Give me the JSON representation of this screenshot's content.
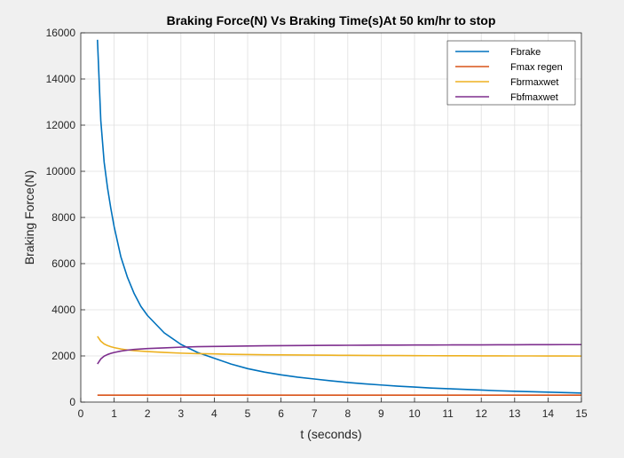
{
  "chart_data": {
    "type": "line",
    "title": "Braking Force(N) Vs Braking Time(s)At 50 km/hr to stop",
    "xlabel": "t (seconds)",
    "ylabel": "Braking Force(N)",
    "xlim": [
      0,
      15
    ],
    "ylim": [
      0,
      16000
    ],
    "xticks": [
      0,
      1,
      2,
      3,
      4,
      5,
      6,
      7,
      8,
      9,
      10,
      11,
      12,
      13,
      14,
      15
    ],
    "yticks": [
      0,
      2000,
      4000,
      6000,
      8000,
      10000,
      12000,
      14000,
      16000
    ],
    "grid": true,
    "legend_position": "top-right",
    "x": [
      0.5,
      0.6,
      0.7,
      0.8,
      0.9,
      1.0,
      1.2,
      1.4,
      1.6,
      1.8,
      2.0,
      2.5,
      3.0,
      3.5,
      4.0,
      4.5,
      5.0,
      5.5,
      6.0,
      6.5,
      7.0,
      7.5,
      8.0,
      8.5,
      9.0,
      9.5,
      10.0,
      10.5,
      11.0,
      11.5,
      12.0,
      12.5,
      13.0,
      13.5,
      14.0,
      14.5,
      15.0
    ],
    "series": [
      {
        "name": "Fbrake",
        "color": "#0072bd",
        "values": [
          15700,
          12200,
          10400,
          9300,
          8400,
          7600,
          6300,
          5400,
          4700,
          4150,
          3750,
          3000,
          2500,
          2150,
          1900,
          1650,
          1450,
          1300,
          1180,
          1080,
          1000,
          920,
          850,
          790,
          740,
          690,
          650,
          610,
          580,
          550,
          520,
          490,
          470,
          450,
          430,
          410,
          390
        ]
      },
      {
        "name": "Fmax regen",
        "color": "#d95319",
        "values": [
          300,
          300,
          300,
          300,
          300,
          300,
          300,
          300,
          300,
          300,
          300,
          300,
          300,
          300,
          300,
          300,
          300,
          300,
          300,
          300,
          300,
          300,
          300,
          300,
          300,
          300,
          300,
          300,
          300,
          300,
          300,
          300,
          300,
          300,
          300,
          300,
          300
        ]
      },
      {
        "name": "Fbrmaxwet",
        "color": "#edb120",
        "values": [
          2850,
          2640,
          2520,
          2450,
          2400,
          2360,
          2300,
          2260,
          2230,
          2210,
          2190,
          2150,
          2120,
          2100,
          2090,
          2070,
          2060,
          2050,
          2045,
          2040,
          2035,
          2030,
          2025,
          2020,
          2018,
          2015,
          2012,
          2010,
          2008,
          2006,
          2004,
          2002,
          2000,
          2000,
          1998,
          1996,
          1995
        ]
      },
      {
        "name": "Fbfmaxwet",
        "color": "#7e2f8e",
        "values": [
          1650,
          1870,
          1990,
          2060,
          2110,
          2150,
          2210,
          2250,
          2280,
          2300,
          2320,
          2350,
          2380,
          2400,
          2410,
          2420,
          2430,
          2440,
          2445,
          2450,
          2455,
          2460,
          2462,
          2465,
          2468,
          2470,
          2472,
          2474,
          2476,
          2478,
          2480,
          2482,
          2484,
          2486,
          2488,
          2490,
          2490
        ]
      }
    ]
  }
}
